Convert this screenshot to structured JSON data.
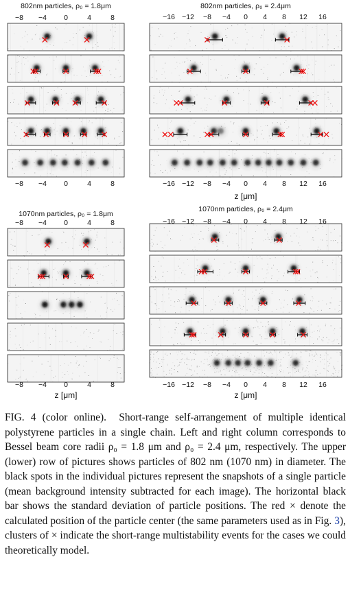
{
  "figure": {
    "panels": [
      {
        "title": "802nm particles, ρ₀ = 1.8μm",
        "ticks": [
          -8,
          -4,
          0,
          4,
          8
        ],
        "xrange": [
          -10,
          10
        ],
        "xlabel": "",
        "rows": [
          {
            "noise": 0.12,
            "spots": [
              {
                "z": -3.2,
                "dx": 0.0,
                "m": [
                  -3.6
                ],
                "i": 1
              },
              {
                "z": 4.0,
                "dx": 0.0,
                "m": [
                  3.6
                ],
                "i": 1
              }
            ]
          },
          {
            "noise": 0.12,
            "spots": [
              {
                "z": -5.0,
                "dx": 0.6,
                "m": [
                  -5.6,
                  -5.2
                ],
                "i": 1
              },
              {
                "z": 0.0,
                "dx": 0.5,
                "m": [
                  0.0
                ],
                "i": 1
              },
              {
                "z": 5.0,
                "dx": 0.8,
                "m": [
                  5.2,
                  5.6
                ],
                "i": 1
              }
            ]
          },
          {
            "noise": 0.12,
            "spots": [
              {
                "z": -6.0,
                "dx": 0.8,
                "m": [
                  -6.6
                ],
                "i": 1
              },
              {
                "z": -1.8,
                "dx": 0.5,
                "m": [
                  -1.6
                ],
                "i": 1
              },
              {
                "z": 2.0,
                "dx": 0.5,
                "m": [
                  1.6
                ],
                "i": 1
              },
              {
                "z": 6.0,
                "dx": 0.8,
                "m": [
                  6.6
                ],
                "i": 1
              }
            ]
          },
          {
            "noise": 0.12,
            "spots": [
              {
                "z": -6.0,
                "dx": 0.8,
                "m": [
                  -6.8
                ],
                "i": 1
              },
              {
                "z": -3.2,
                "dx": 0.5,
                "m": [
                  -3.4
                ],
                "i": 1
              },
              {
                "z": 0.0,
                "dx": 0.4,
                "m": [
                  0.0
                ],
                "i": 1
              },
              {
                "z": 3.0,
                "dx": 0.5,
                "m": [
                  3.2
                ],
                "i": 1
              },
              {
                "z": 6.0,
                "dx": 0.6,
                "m": [
                  6.6
                ],
                "i": 1
              }
            ]
          },
          {
            "noise": 0.12,
            "spots": [
              {
                "z": -7.0,
                "i": 0.9
              },
              {
                "z": -4.4,
                "i": 0.9
              },
              {
                "z": -2.2,
                "i": 0.9
              },
              {
                "z": -0.2,
                "i": 0.9
              },
              {
                "z": 2.0,
                "i": 0.9
              },
              {
                "z": 4.4,
                "i": 0.9
              },
              {
                "z": 6.8,
                "i": 0.9
              }
            ]
          }
        ]
      },
      {
        "title": "802nm particles, ρ₀ = 2.4μm",
        "ticks": [
          -16,
          -12,
          -8,
          -4,
          0,
          4,
          8,
          12,
          16
        ],
        "xrange": [
          -20,
          20
        ],
        "xlabel": "z [μm]",
        "rows": [
          {
            "noise": 0.12,
            "spots": [
              {
                "z": -6.4,
                "dx": 1.6,
                "m": [
                  -8.0
                ],
                "i": 1
              },
              {
                "z": 7.6,
                "dx": 1.4,
                "m": [
                  8.6
                ],
                "i": 1
              }
            ]
          },
          {
            "noise": 0.12,
            "spots": [
              {
                "z": -10.8,
                "dx": 1.4,
                "m": [
                  -11.6
                ],
                "i": 1
              },
              {
                "z": 0.0,
                "dx": 0.8,
                "m": [
                  0.0
                ],
                "i": 1
              },
              {
                "z": 10.6,
                "dx": 1.2,
                "m": [
                  11.6,
                  12.0
                ],
                "i": 1
              }
            ]
          },
          {
            "noise": 0.12,
            "spots": [
              {
                "z": -12.0,
                "dx": 1.4,
                "m": [
                  -14.4,
                  -13.6
                ],
                "i": 1
              },
              {
                "z": -4.0,
                "dx": 0.8,
                "m": [
                  -4.4
                ],
                "i": 1
              },
              {
                "z": 4.0,
                "dx": 0.8,
                "m": [
                  4.4
                ],
                "i": 1
              },
              {
                "z": 12.4,
                "dx": 1.2,
                "m": [
                  13.6,
                  14.4
                ],
                "i": 1
              }
            ]
          },
          {
            "noise": 0.12,
            "spots": [
              {
                "z": -13.6,
                "dx": 1.4,
                "m": [
                  -16.8,
                  -15.6
                ],
                "i": 1
              },
              {
                "z": -6.6,
                "dx": 1.0,
                "m": [
                  -8.0,
                  -7.2
                ],
                "i": 1
              },
              {
                "z": -5.2,
                "i": 0.55
              },
              {
                "z": 0.0,
                "dx": 0.6,
                "m": [
                  0.0
                ],
                "i": 1
              },
              {
                "z": 6.4,
                "dx": 0.8,
                "m": [
                  7.2,
                  7.6
                ],
                "i": 1
              },
              {
                "z": 14.8,
                "dx": 1.2,
                "m": [
                  15.6,
                  16.8
                ],
                "i": 1
              }
            ]
          },
          {
            "noise": 0.12,
            "spots": [
              {
                "z": -14.8,
                "i": 0.9
              },
              {
                "z": -12.2,
                "i": 0.9
              },
              {
                "z": -9.6,
                "i": 0.9
              },
              {
                "z": -7.4,
                "i": 0.9
              },
              {
                "z": -4.8,
                "i": 0.9
              },
              {
                "z": -2.4,
                "i": 0.9
              },
              {
                "z": 0.4,
                "i": 0.9
              },
              {
                "z": 2.6,
                "i": 0.9
              },
              {
                "z": 4.8,
                "i": 0.9
              },
              {
                "z": 7.0,
                "i": 0.9
              },
              {
                "z": 9.4,
                "i": 0.9
              },
              {
                "z": 12.0,
                "i": 0.9
              },
              {
                "z": 14.6,
                "i": 0.9
              }
            ]
          }
        ]
      },
      {
        "title": "1070nm particles, ρ₀ = 1.8μm",
        "ticks": [
          -8,
          -4,
          0,
          4,
          8
        ],
        "xrange": [
          -10,
          10
        ],
        "xlabel": "z [μm]",
        "rows": [
          {
            "noise": 0.12,
            "spots": [
              {
                "z": -3.0,
                "dx": 0.0,
                "m": [
                  -3.2
                ],
                "i": 1
              },
              {
                "z": 3.6,
                "dx": 0.0,
                "m": [
                  3.4
                ],
                "i": 1
              }
            ]
          },
          {
            "noise": 0.12,
            "spots": [
              {
                "z": -3.8,
                "dx": 0.9,
                "m": [
                  -4.4,
                  -4.0
                ],
                "i": 1
              },
              {
                "z": 0.0,
                "dx": 0.4,
                "m": [
                  0.0
                ],
                "i": 1
              },
              {
                "z": 3.6,
                "dx": 0.9,
                "m": [
                  4.0,
                  4.4
                ],
                "i": 1
              }
            ]
          },
          {
            "noise": 0.12,
            "spots": [
              {
                "z": -3.6,
                "i": 1
              },
              {
                "z": -0.4,
                "i": 1
              },
              {
                "z": 1.0,
                "i": 1
              },
              {
                "z": 2.4,
                "i": 1
              }
            ]
          },
          {
            "noise": 0.12,
            "spots": []
          },
          {
            "noise": 0.12,
            "spots": []
          }
        ]
      },
      {
        "title": "1070nm particles, ρ₀ = 2.4μm",
        "ticks": [
          -16,
          -12,
          -8,
          -4,
          0,
          4,
          8,
          12,
          16
        ],
        "xrange": [
          -20,
          20
        ],
        "xlabel": "z [μm]",
        "rows": [
          {
            "noise": 0.14,
            "spots": [
              {
                "z": -6.4,
                "dx": 0.8,
                "m": [
                  -6.6
                ],
                "i": 1
              },
              {
                "z": 6.8,
                "dx": 0.8,
                "m": [
                  7.0
                ],
                "i": 1
              }
            ]
          },
          {
            "noise": 0.14,
            "spots": [
              {
                "z": -8.4,
                "dx": 1.6,
                "m": [
                  -9.2,
                  -8.6
                ],
                "i": 1
              },
              {
                "z": 0.0,
                "dx": 0.8,
                "m": [
                  0.0
                ],
                "i": 1
              },
              {
                "z": 10.0,
                "dx": 1.2,
                "m": [
                  10.4,
                  10.8
                ],
                "i": 1
              }
            ]
          },
          {
            "noise": 0.16,
            "spots": [
              {
                "z": -11.2,
                "dx": 1.2,
                "m": [
                  -10.8
                ],
                "i": 1
              },
              {
                "z": -3.6,
                "dx": 0.8,
                "m": [
                  -3.6
                ],
                "i": 1
              },
              {
                "z": 3.6,
                "dx": 0.8,
                "m": [
                  3.6
                ],
                "i": 1
              },
              {
                "z": 11.2,
                "dx": 1.2,
                "m": [
                  11.0
                ],
                "i": 1
              }
            ]
          },
          {
            "noise": 0.16,
            "spots": [
              {
                "z": -11.6,
                "dx": 1.2,
                "m": [
                  -11.2,
                  -10.8
                ],
                "i": 1
              },
              {
                "z": -4.8,
                "dx": 0.6,
                "m": [
                  -5.2
                ],
                "i": 1
              },
              {
                "z": 0.0,
                "dx": 0.6,
                "m": [
                  0.0
                ],
                "i": 1
              },
              {
                "z": 5.6,
                "dx": 0.6,
                "m": [
                  5.6
                ],
                "i": 1
              },
              {
                "z": 11.8,
                "dx": 1.0,
                "m": [
                  12.0
                ],
                "i": 1
              }
            ]
          },
          {
            "noise": 0.45,
            "spots": [
              {
                "z": -6.0,
                "i": 0.9
              },
              {
                "z": -3.6,
                "i": 0.9
              },
              {
                "z": -1.6,
                "i": 0.9
              },
              {
                "z": 0.4,
                "i": 0.9
              },
              {
                "z": 2.8,
                "i": 0.9
              },
              {
                "z": 5.2,
                "i": 0.9
              },
              {
                "z": 10.4,
                "i": 0.9
              }
            ]
          }
        ]
      }
    ]
  },
  "caption": {
    "label": "FIG. 4 (color online).",
    "part1": "Short-range self-arrangement of multiple identical polystyrene particles in a single chain. Left and right column corresponds to Bessel beam core radii ρ₀ = 1.8 μm and ρ₀ = 2.4 μm, respectively. The upper (lower) row of pictures shows particles of 802 nm (1070 nm) in diameter. The black spots in the individual pictures represent the snapshots of a single particle (mean background intensity subtracted for each image). The horizontal black bar shows the standard deviation of particle positions. The red × denote the calculated position of the particle center (the same parameters used as in Fig.",
    "ref": "3",
    "part2": "), clusters of × indicate the short-range multistability events for the cases we could theoretically model."
  }
}
